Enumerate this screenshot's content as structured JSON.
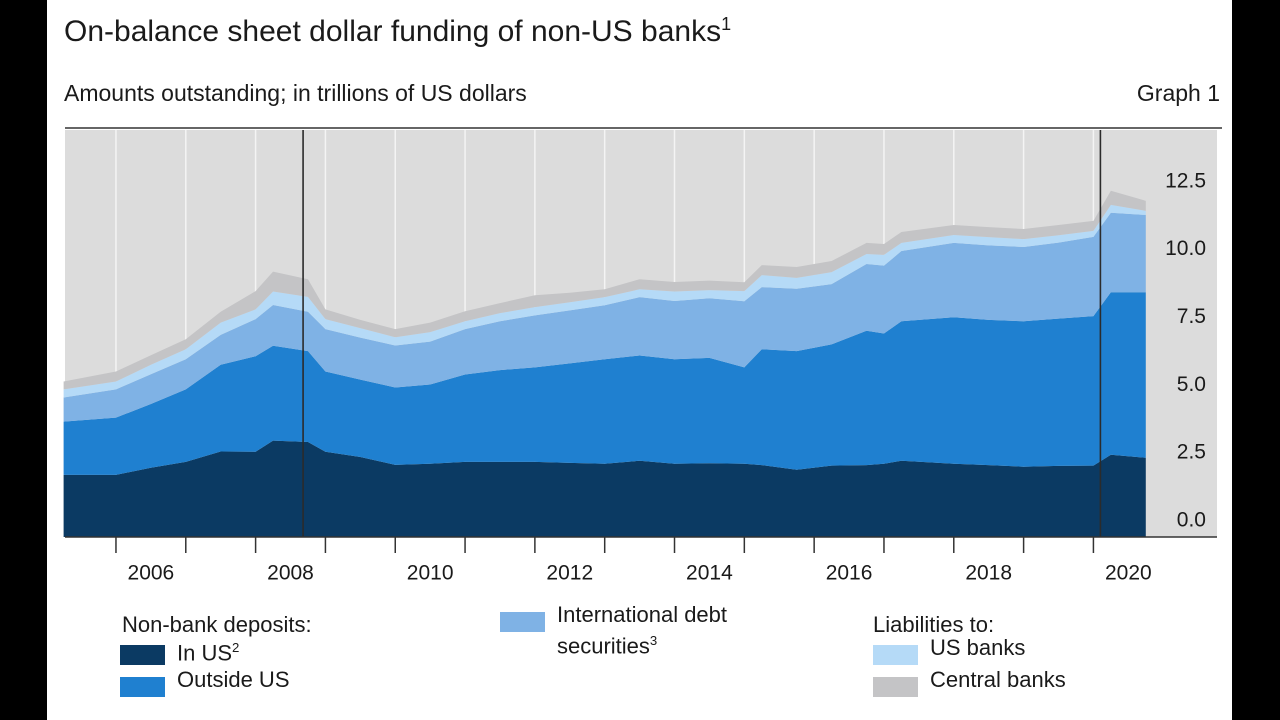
{
  "chart_data": {
    "type": "stacked_area",
    "title": "On-balance sheet dollar funding of non-US banks",
    "title_note": "1",
    "subtitle": "Amounts outstanding; in trillions of US dollars",
    "graph_label": "Graph 1",
    "legend_headers": [
      "Non-bank deposits:",
      "Liabilities to:"
    ],
    "x": [
      2005.25,
      2006.0,
      2006.5,
      2007.0,
      2007.5,
      2008.0,
      2008.25,
      2008.75,
      2009.0,
      2009.5,
      2010.0,
      2010.5,
      2011.0,
      2011.5,
      2012.0,
      2012.5,
      2013.0,
      2013.5,
      2014.0,
      2014.5,
      2015.0,
      2015.25,
      2015.75,
      2016.25,
      2016.75,
      2017.0,
      2017.25,
      2018.0,
      2018.5,
      2019.0,
      2019.5,
      2020.0,
      2020.25,
      2020.75
    ],
    "series": [
      {
        "name": "In US",
        "note": "2",
        "color": "#0b3a63",
        "values": [
          2.29,
          2.29,
          2.55,
          2.77,
          3.15,
          3.14,
          3.55,
          3.5,
          3.14,
          2.95,
          2.66,
          2.7,
          2.77,
          2.77,
          2.77,
          2.73,
          2.7,
          2.81,
          2.7,
          2.72,
          2.7,
          2.65,
          2.48,
          2.63,
          2.65,
          2.7,
          2.81,
          2.7,
          2.65,
          2.59,
          2.62,
          2.63,
          3.03,
          2.92
        ]
      },
      {
        "name": "Outside US",
        "color": "#1f80d0",
        "values": [
          1.96,
          2.11,
          2.35,
          2.67,
          3.2,
          3.52,
          3.5,
          3.35,
          2.96,
          2.85,
          2.85,
          2.92,
          3.22,
          3.38,
          3.48,
          3.67,
          3.85,
          3.88,
          3.85,
          3.88,
          3.55,
          4.27,
          4.37,
          4.47,
          4.95,
          4.8,
          5.14,
          5.4,
          5.35,
          5.36,
          5.43,
          5.51,
          5.99,
          6.1
        ]
      },
      {
        "name": "International debt securities",
        "note": "3",
        "color": "#7fb2e5",
        "values": [
          0.89,
          1.04,
          1.1,
          1.11,
          1.1,
          1.37,
          1.5,
          1.45,
          1.56,
          1.55,
          1.55,
          1.58,
          1.67,
          1.8,
          1.92,
          1.95,
          1.99,
          2.15,
          2.15,
          2.2,
          2.44,
          2.29,
          2.3,
          2.22,
          2.46,
          2.5,
          2.59,
          2.74,
          2.75,
          2.74,
          2.8,
          2.92,
          2.93,
          2.85
        ]
      },
      {
        "name": "US banks",
        "color": "#b5daf7",
        "values": [
          0.3,
          0.29,
          0.35,
          0.37,
          0.45,
          0.36,
          0.5,
          0.55,
          0.37,
          0.35,
          0.3,
          0.35,
          0.29,
          0.3,
          0.3,
          0.3,
          0.3,
          0.29,
          0.35,
          0.3,
          0.37,
          0.44,
          0.4,
          0.44,
          0.37,
          0.4,
          0.3,
          0.29,
          0.3,
          0.29,
          0.27,
          0.22,
          0.29,
          0.15
        ]
      },
      {
        "name": "Central banks",
        "color": "#c4c4c6",
        "values": [
          0.29,
          0.37,
          0.35,
          0.37,
          0.4,
          0.67,
          0.73,
          0.65,
          0.36,
          0.3,
          0.3,
          0.35,
          0.37,
          0.37,
          0.44,
          0.35,
          0.29,
          0.37,
          0.35,
          0.35,
          0.33,
          0.37,
          0.4,
          0.41,
          0.41,
          0.4,
          0.4,
          0.37,
          0.37,
          0.37,
          0.38,
          0.37,
          0.52,
          0.37
        ]
      }
    ],
    "xlim": [
      2005.27,
      2021.77
    ],
    "ylim": [
      0,
      15
    ],
    "yticks": [
      {
        "value": 0,
        "label": "0.0"
      },
      2.5,
      {
        "value": 5,
        "label": "5.0"
      },
      7.5,
      {
        "value": 10,
        "label": "10.0"
      },
      12.5
    ],
    "xticks": [
      2006,
      2007,
      2008,
      2009,
      2010,
      2011,
      2012,
      2013,
      2014,
      2015,
      2016,
      2017,
      2018,
      2019,
      2020
    ],
    "xtick_labels": [
      {
        "value": 2006.5,
        "label": "2006"
      },
      {
        "value": 2008.5,
        "label": "2008"
      },
      {
        "value": 2010.5,
        "label": "2010"
      },
      {
        "value": 2012.5,
        "label": "2012"
      },
      {
        "value": 2014.5,
        "label": "2014"
      },
      {
        "value": 2016.5,
        "label": "2016"
      },
      {
        "value": 2018.5,
        "label": "2018"
      },
      {
        "value": 2020.5,
        "label": "2020"
      }
    ],
    "event_lines": [
      2008.68,
      2020.1
    ],
    "grid": "x",
    "plot_background": "#dcdcdc"
  }
}
